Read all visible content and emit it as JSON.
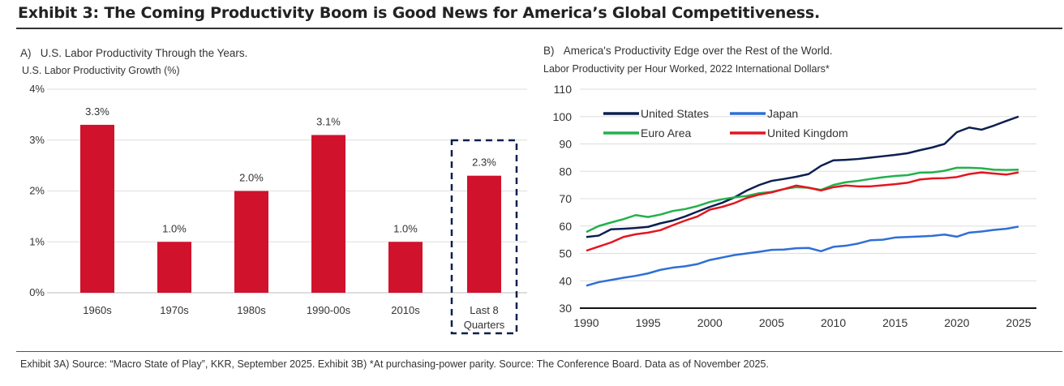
{
  "title": "Exhibit 3: The Coming Productivity Boom is Good News for America’s Global Competitiveness.",
  "footnote": "Exhibit 3A) Source: “Macro State of Play”, KKR, September 2025. Exhibit 3B) *At purchasing-power parity. Source: The Conference Board. Data as of November 2025.",
  "chart_data": [
    {
      "type": "bar",
      "panel": "A)",
      "title": "U.S. Labor Productivity Through the Years.",
      "ylabel": "U.S. Labor Productivity Growth (%)",
      "categories": [
        "1960s",
        "1970s",
        "1980s",
        "1990-00s",
        "2010s",
        "Last 8 Quarters"
      ],
      "values": [
        3.3,
        1.0,
        2.0,
        3.1,
        1.0,
        2.3
      ],
      "data_labels": [
        "3.3%",
        "1.0%",
        "2.0%",
        "3.1%",
        "1.0%",
        "2.3%"
      ],
      "yticks": [
        "0%",
        "1%",
        "2%",
        "3%",
        "4%"
      ],
      "ylim": [
        0,
        4
      ],
      "grid": true,
      "bar_color": "#d0122d",
      "highlight": "Last 8 Quarters"
    },
    {
      "type": "line",
      "panel": "B)",
      "title": "America's Productivity Edge over the Rest of the World.",
      "ylabel": "Labor Productivity per Hour Worked, 2022 International Dollars*",
      "x": [
        1990,
        1991,
        1992,
        1993,
        1994,
        1995,
        1996,
        1997,
        1998,
        1999,
        2000,
        2001,
        2002,
        2003,
        2004,
        2005,
        2006,
        2007,
        2008,
        2009,
        2010,
        2011,
        2012,
        2013,
        2014,
        2015,
        2016,
        2017,
        2018,
        2019,
        2020,
        2021,
        2022,
        2023,
        2024,
        2025
      ],
      "xticks": [
        1990,
        1995,
        2000,
        2005,
        2010,
        2015,
        2020,
        2025
      ],
      "yticks": [
        30,
        40,
        50,
        60,
        70,
        80,
        90,
        100,
        110
      ],
      "ylim": [
        30,
        110
      ],
      "xlim": [
        1990,
        2025
      ],
      "grid": true,
      "legend": "top-left",
      "series": [
        {
          "name": "United States",
          "color": "#0b1f4f",
          "values": [
            56,
            56.5,
            58.8,
            59,
            59.3,
            59.7,
            61,
            62,
            63.5,
            65.3,
            67,
            68.5,
            70.5,
            73,
            75,
            76.5,
            77.2,
            78,
            79,
            82,
            84,
            84.2,
            84.5,
            85,
            85.5,
            86,
            86.6,
            87.7,
            88.7,
            90,
            94.3,
            96,
            95.2,
            96.7,
            98.4,
            100
          ]
        },
        {
          "name": "Japan",
          "color": "#2f6fd6",
          "values": [
            38.2,
            39.5,
            40.3,
            41.1,
            41.8,
            42.7,
            44,
            44.8,
            45.3,
            46.1,
            47.6,
            48.5,
            49.4,
            50,
            50.6,
            51.3,
            51.4,
            51.9,
            52,
            50.8,
            52.4,
            52.8,
            53.6,
            54.8,
            55,
            55.8,
            56,
            56.2,
            56.4,
            56.9,
            56.1,
            57.6,
            58,
            58.6,
            59,
            59.8
          ]
        },
        {
          "name": "Euro Area",
          "color": "#22b14c",
          "values": [
            57.8,
            60,
            61.3,
            62.5,
            64,
            63.3,
            64.2,
            65.5,
            66.2,
            67.3,
            68.8,
            69.8,
            70.5,
            71,
            72,
            72.5,
            73.5,
            74.2,
            74,
            73.2,
            75,
            76,
            76.5,
            77.2,
            77.8,
            78.3,
            78.6,
            79.5,
            79.6,
            80.2,
            81.3,
            81.3,
            81.1,
            80.6,
            80.5,
            80.6
          ]
        },
        {
          "name": "United Kingdom",
          "color": "#e3161f",
          "values": [
            51,
            52.5,
            54,
            56,
            57,
            57.6,
            58.5,
            60.3,
            62,
            63.5,
            66,
            67,
            68.4,
            70.3,
            71.5,
            72.3,
            73.5,
            74.8,
            74,
            73,
            74.2,
            74.8,
            74.5,
            74.5,
            74.9,
            75.3,
            75.8,
            77,
            77.4,
            77.5,
            77.9,
            79,
            79.6,
            79.2,
            78.8,
            79.6
          ]
        }
      ]
    }
  ]
}
